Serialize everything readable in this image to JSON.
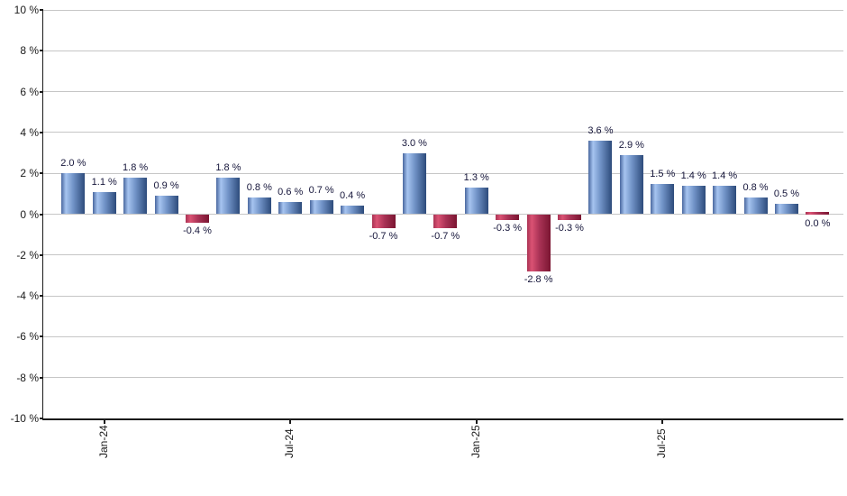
{
  "chart_data": {
    "type": "bar",
    "title": "",
    "xlabel": "",
    "ylabel": "",
    "unit": "%",
    "ylim": [
      -10,
      10
    ],
    "grid": true,
    "legend": "none",
    "y_tick_values": [
      10,
      8,
      6,
      4,
      2,
      0,
      -2,
      -4,
      -6,
      -8,
      -10
    ],
    "y_tick_labels": [
      "10 %",
      "8 %",
      "6 %",
      "4 %",
      "2 %",
      "0 %",
      "-2 %",
      "-4 %",
      "-6 %",
      "-8 %",
      "-10 %"
    ],
    "values": [
      2.0,
      1.1,
      1.8,
      0.9,
      -0.4,
      1.8,
      0.8,
      0.6,
      0.7,
      0.4,
      -0.7,
      3.0,
      -0.7,
      1.3,
      -0.3,
      -2.8,
      -0.3,
      3.6,
      2.9,
      1.5,
      1.4,
      1.4,
      0.8,
      0.5,
      0.0
    ],
    "bar_labels": [
      "2.0 %",
      "1.1 %",
      "1.8 %",
      "0.9 %",
      "-0.4 %",
      "1.8 %",
      "0.8 %",
      "0.6 %",
      "0.7 %",
      "0.4 %",
      "-0.7 %",
      "3.0 %",
      "-0.7 %",
      "1.3 %",
      "-0.3 %",
      "-2.8 %",
      "-0.3 %",
      "3.6 %",
      "2.9 %",
      "1.5 %",
      "1.4 %",
      "1.4 %",
      "0.8 %",
      "0.5 %",
      "0.0 %"
    ],
    "x_tick_labels": [
      {
        "bar_index": 1,
        "label": "Jan-24"
      },
      {
        "bar_index": 7,
        "label": "Jul-24"
      },
      {
        "bar_index": 13,
        "label": "Jan-25"
      },
      {
        "bar_index": 19,
        "label": "Jul-25"
      }
    ],
    "colors": {
      "positive_bar_edge": "#4a689f",
      "positive_bar_highlight": "#a6c4f0",
      "positive_bar_mid": "#7092c6",
      "positive_bar_dark": "#2d4b7b",
      "negative_bar_edge": "#aa3354",
      "negative_bar_highlight": "#da5273",
      "negative_bar_mid": "#aa3356",
      "negative_bar_dark": "#7a1531",
      "gridline": "#c6c6c6",
      "axis": "#1a1a1a",
      "tick_label": "#1a1a1a",
      "value_label": "#15153a",
      "background": "#ffffff"
    }
  }
}
